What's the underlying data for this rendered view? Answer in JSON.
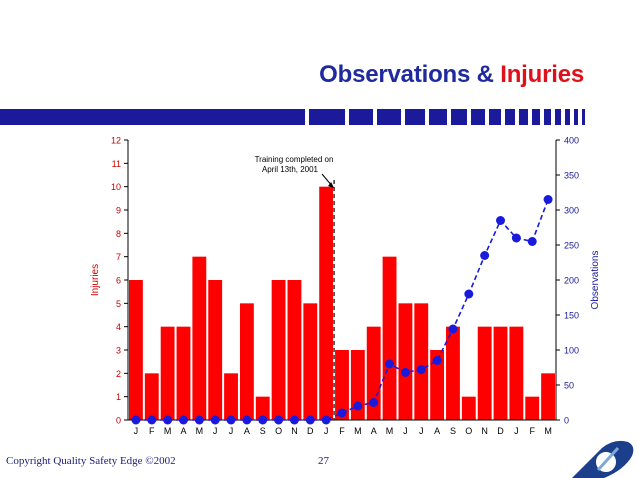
{
  "title": {
    "part1": "Observations",
    "part2": " & ",
    "part3": "Injuries"
  },
  "footer": {
    "copyright": "Copyright Quality Safety Edge ©2002",
    "page_number": "27"
  },
  "colors": {
    "bar": "#ff0000",
    "line": "#1a1adc",
    "title_blue": "#1f2a9e",
    "title_red": "#e0101a",
    "band": "#1a1a9a"
  },
  "chart_data": {
    "type": "bar",
    "categories": [
      "J",
      "F",
      "M",
      "A",
      "M",
      "J",
      "J",
      "A",
      "S",
      "O",
      "N",
      "D",
      "J",
      "F",
      "M",
      "A",
      "M",
      "J",
      "J",
      "A",
      "S",
      "O",
      "N",
      "D",
      "J",
      "F",
      "M"
    ],
    "series": [
      {
        "name": "Injuries",
        "type": "bar",
        "axis": "left",
        "values": [
          6,
          2,
          4,
          4,
          7,
          6,
          2,
          5,
          1,
          6,
          6,
          5,
          10,
          3,
          3,
          4,
          7,
          5,
          5,
          3,
          4,
          1,
          4,
          4,
          4,
          1,
          2
        ]
      },
      {
        "name": "Observations",
        "type": "line",
        "axis": "right",
        "values": [
          0,
          0,
          0,
          0,
          0,
          0,
          0,
          0,
          0,
          0,
          0,
          0,
          0,
          10,
          20,
          25,
          80,
          68,
          72,
          85,
          130,
          180,
          235,
          285,
          260,
          255,
          315
        ]
      }
    ],
    "ylabel": "Injuries",
    "y2label": "Observations",
    "ylim": [
      0,
      12
    ],
    "yticks": [
      0,
      1,
      2,
      3,
      4,
      5,
      6,
      7,
      8,
      9,
      10,
      11,
      12
    ],
    "y2lim": [
      0,
      400
    ],
    "y2ticks": [
      0,
      50,
      100,
      150,
      200,
      250,
      300,
      350,
      400
    ],
    "annotation": {
      "text_line1": "Training completed on",
      "text_line2": "April 13th, 2001",
      "after_category_index": 12
    },
    "grid": false
  }
}
